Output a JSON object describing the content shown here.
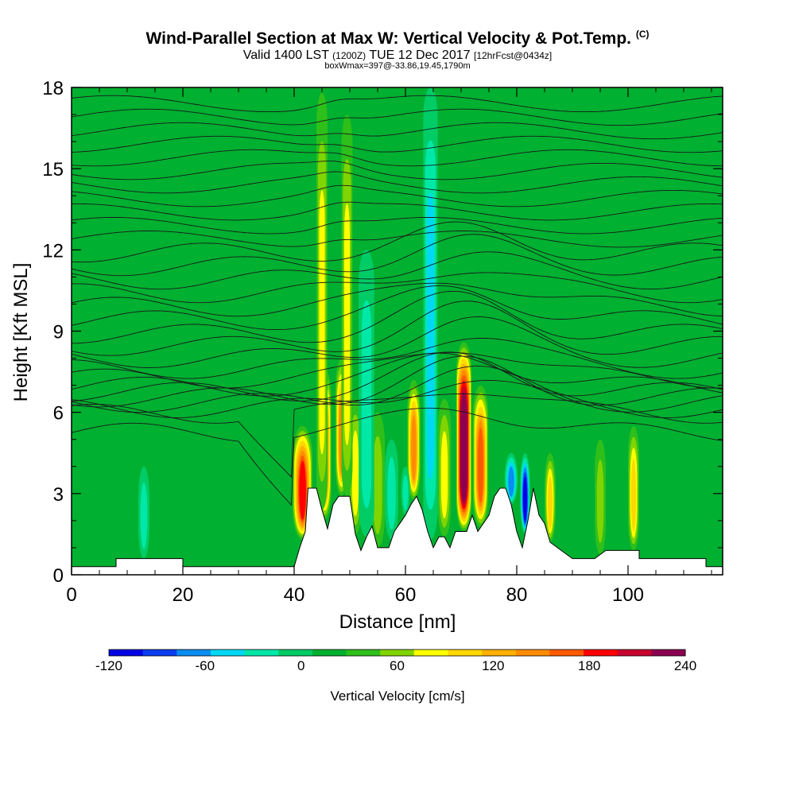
{
  "chart_data": {
    "type": "heatmap",
    "title": {
      "main": "Wind-Parallel Section at Max W: Vertical Velocity & Pot.Temp.",
      "main_suffix": "(C)",
      "valid_prefix": "Valid 1400 LST",
      "valid_zulu": "(1200Z)",
      "valid_date": "TUE 12 Dec 2017",
      "forecast": "[12hrFcst@0434z]",
      "box_info": "boxWmax=397@-33.86,19.45,1790m"
    },
    "xlabel": "Distance [nm]",
    "ylabel": "Height [Kft MSL]",
    "xlim": [
      0,
      117
    ],
    "ylim": [
      0,
      18
    ],
    "xticks": [
      0,
      20,
      40,
      60,
      80,
      100
    ],
    "yticks": [
      0,
      3,
      6,
      9,
      12,
      15,
      18
    ],
    "colorbar": {
      "label": "Vertical Velocity [cm/s]",
      "ticks": [
        -120,
        -60,
        0,
        60,
        120,
        180,
        240
      ],
      "min": -120,
      "max": 240,
      "step": 20,
      "colors": [
        "#0000e6",
        "#0a3ef0",
        "#0a8cf0",
        "#00d8f5",
        "#00e8a8",
        "#00cc66",
        "#00b030",
        "#2ebf1a",
        "#80d400",
        "#ffff00",
        "#ffd800",
        "#ffb000",
        "#ff8c00",
        "#ff5a00",
        "#ff0000",
        "#c8002e",
        "#8c0050"
      ]
    },
    "terrain_height_kft": [
      {
        "x": 0,
        "h": 0.3
      },
      {
        "x": 8,
        "h": 0.3
      },
      {
        "x": 8,
        "h": 0.6
      },
      {
        "x": 20,
        "h": 0.6
      },
      {
        "x": 20,
        "h": 0.3
      },
      {
        "x": 40,
        "h": 0.3
      },
      {
        "x": 41,
        "h": 1.0
      },
      {
        "x": 42,
        "h": 1.6
      },
      {
        "x": 42.5,
        "h": 3.2
      },
      {
        "x": 44,
        "h": 3.2
      },
      {
        "x": 45,
        "h": 2.4
      },
      {
        "x": 46,
        "h": 1.7
      },
      {
        "x": 47,
        "h": 2.6
      },
      {
        "x": 48,
        "h": 2.9
      },
      {
        "x": 50,
        "h": 2.9
      },
      {
        "x": 51,
        "h": 1.5
      },
      {
        "x": 52,
        "h": 0.9
      },
      {
        "x": 53,
        "h": 1.4
      },
      {
        "x": 54,
        "h": 1.8
      },
      {
        "x": 55,
        "h": 1.0
      },
      {
        "x": 57,
        "h": 1.0
      },
      {
        "x": 58,
        "h": 1.6
      },
      {
        "x": 60,
        "h": 2.2
      },
      {
        "x": 61,
        "h": 2.6
      },
      {
        "x": 62,
        "h": 2.9
      },
      {
        "x": 63,
        "h": 2.4
      },
      {
        "x": 64,
        "h": 1.6
      },
      {
        "x": 65,
        "h": 1.0
      },
      {
        "x": 66,
        "h": 1.4
      },
      {
        "x": 67,
        "h": 1.4
      },
      {
        "x": 68,
        "h": 1.0
      },
      {
        "x": 69,
        "h": 1.6
      },
      {
        "x": 71,
        "h": 1.6
      },
      {
        "x": 72,
        "h": 2.2
      },
      {
        "x": 73,
        "h": 1.6
      },
      {
        "x": 75,
        "h": 2.2
      },
      {
        "x": 76,
        "h": 2.9
      },
      {
        "x": 77,
        "h": 3.2
      },
      {
        "x": 78,
        "h": 3.2
      },
      {
        "x": 79,
        "h": 2.6
      },
      {
        "x": 80,
        "h": 1.6
      },
      {
        "x": 81,
        "h": 1.0
      },
      {
        "x": 82,
        "h": 2.0
      },
      {
        "x": 83,
        "h": 3.2
      },
      {
        "x": 84,
        "h": 2.2
      },
      {
        "x": 85,
        "h": 1.9
      },
      {
        "x": 86,
        "h": 1.2
      },
      {
        "x": 88,
        "h": 0.9
      },
      {
        "x": 90,
        "h": 0.6
      },
      {
        "x": 94,
        "h": 0.6
      },
      {
        "x": 96,
        "h": 0.9
      },
      {
        "x": 102,
        "h": 0.9
      },
      {
        "x": 102,
        "h": 0.6
      },
      {
        "x": 114,
        "h": 0.6
      },
      {
        "x": 114,
        "h": 0.3
      },
      {
        "x": 117,
        "h": 0.3
      }
    ],
    "updraft_cores": [
      {
        "x": 41.5,
        "w": 160,
        "top_kft": 5.5,
        "width_nm": 1.8
      },
      {
        "x": 45.5,
        "w": 140,
        "top_kft": 7.6,
        "width_nm": 1.2
      },
      {
        "x": 48.5,
        "w": 130,
        "top_kft": 8.0,
        "width_nm": 1.1
      },
      {
        "x": 51.0,
        "w": 60,
        "top_kft": 6.5,
        "width_nm": 1.2
      },
      {
        "x": 55.0,
        "w": 40,
        "top_kft": 6.0,
        "width_nm": 1.3
      },
      {
        "x": 61.5,
        "w": 130,
        "top_kft": 7.2,
        "width_nm": 1.2
      },
      {
        "x": 67.0,
        "w": 60,
        "top_kft": 6.5,
        "width_nm": 1.2
      },
      {
        "x": 70.5,
        "w": 240,
        "top_kft": 8.6,
        "width_nm": 1.4
      },
      {
        "x": 73.5,
        "w": 140,
        "top_kft": 7.0,
        "width_nm": 1.4
      },
      {
        "x": 86.0,
        "w": 90,
        "top_kft": 4.5,
        "width_nm": 1.0
      },
      {
        "x": 95.0,
        "w": 50,
        "top_kft": 5.0,
        "width_nm": 1.0
      },
      {
        "x": 101.0,
        "w": 80,
        "top_kft": 5.5,
        "width_nm": 1.0
      },
      {
        "x": 45.0,
        "w": 70,
        "top_kft": 17.8,
        "width_nm": 1.0
      },
      {
        "x": 49.5,
        "w": 60,
        "top_kft": 17.0,
        "width_nm": 1.0
      }
    ],
    "downdraft_cores": [
      {
        "x": 53.0,
        "w": -50,
        "top_kft": 12.0,
        "width_nm": 1.4
      },
      {
        "x": 57.5,
        "w": -50,
        "top_kft": 5.0,
        "width_nm": 1.2
      },
      {
        "x": 64.5,
        "w": -70,
        "top_kft": 18.0,
        "width_nm": 1.3
      },
      {
        "x": 79.0,
        "w": -90,
        "top_kft": 4.5,
        "width_nm": 1.2
      },
      {
        "x": 81.5,
        "w": -120,
        "top_kft": 4.5,
        "width_nm": 0.9
      },
      {
        "x": 13.0,
        "w": -40,
        "top_kft": 4.0,
        "width_nm": 1.0
      },
      {
        "x": 60.0,
        "w": -40,
        "top_kft": 4.0,
        "width_nm": 0.8
      }
    ],
    "theta_contours_base_kft": [
      5.25,
      5.95,
      6.15,
      6.35,
      6.55,
      6.75,
      6.95,
      7.25,
      7.6,
      8.0,
      8.45,
      8.9,
      9.4,
      9.9,
      10.4,
      10.9,
      11.4,
      11.9,
      12.4,
      12.9,
      13.4,
      13.9,
      14.4,
      14.9,
      15.4,
      15.9,
      16.4,
      16.9,
      17.4
    ]
  }
}
